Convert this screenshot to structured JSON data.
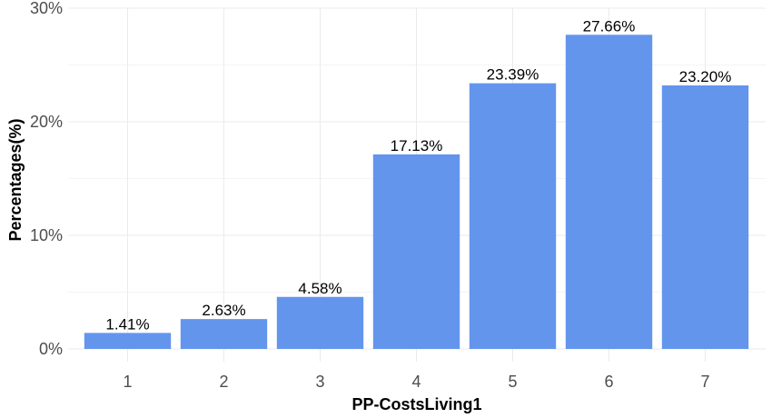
{
  "chart_data": {
    "type": "bar",
    "categories": [
      "1",
      "2",
      "3",
      "4",
      "5",
      "6",
      "7"
    ],
    "values": [
      1.41,
      2.63,
      4.58,
      17.13,
      23.39,
      27.66,
      23.2
    ],
    "data_labels": [
      "1.41%",
      "2.63%",
      "4.58%",
      "17.13%",
      "23.39%",
      "27.66%",
      "23.20%"
    ],
    "xlabel": "PP-CostsLiving1",
    "ylabel": "Percentages(%)",
    "ylim": [
      0,
      30
    ],
    "yticks": [
      0,
      10,
      20,
      30
    ],
    "ytick_labels": [
      "0%",
      "10%",
      "20%",
      "30%"
    ],
    "grid": true,
    "colors": {
      "bar": "#6495ED",
      "grid_major": "#ebebeb",
      "grid_minor": "#f4f4f4"
    }
  }
}
